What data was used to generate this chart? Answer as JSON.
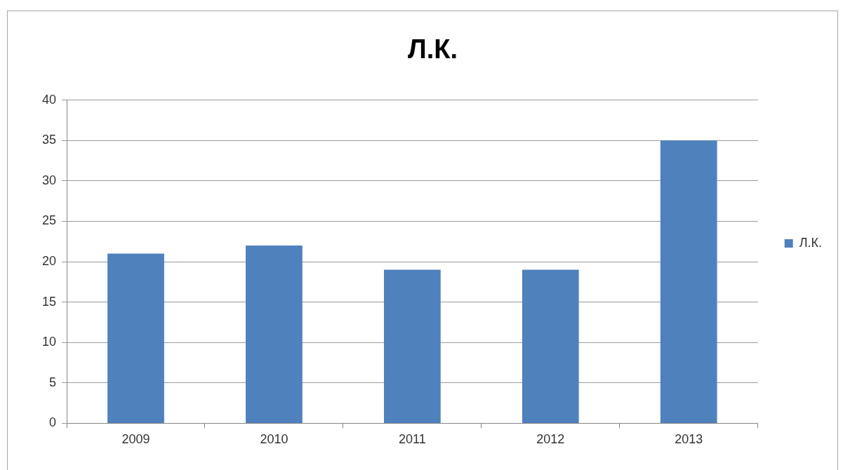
{
  "chart_data": {
    "type": "bar",
    "title": "Л.К.",
    "categories": [
      "2009",
      "2010",
      "2011",
      "2012",
      "2013"
    ],
    "series": [
      {
        "name": "Л.К.",
        "color": "#4f81bd",
        "values": [
          21,
          22,
          19,
          19,
          35
        ]
      }
    ],
    "ylim": [
      0,
      40
    ],
    "yticks": [
      0,
      5,
      10,
      15,
      20,
      25,
      30,
      35,
      40
    ],
    "grid": "y",
    "legend": "right"
  }
}
